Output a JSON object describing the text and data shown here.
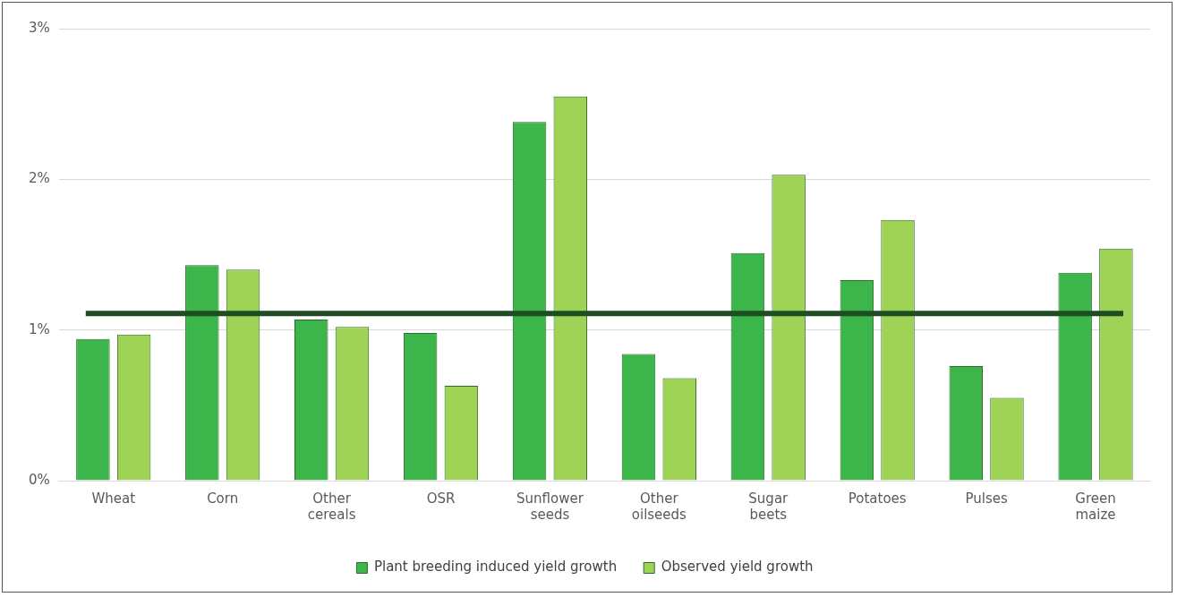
{
  "chart_data": {
    "type": "bar",
    "categories": [
      "Wheat",
      "Corn",
      "Other cereals",
      "OSR",
      "Sunflower seeds",
      "Other oilseeds",
      "Sugar beets",
      "Potatoes",
      "Pulses",
      "Green maize"
    ],
    "series": [
      {
        "name": "Plant breeding induced yield growth",
        "color": "#3cb54a",
        "values": [
          0.94,
          1.43,
          1.07,
          0.98,
          2.38,
          0.84,
          1.51,
          1.33,
          0.76,
          1.38
        ]
      },
      {
        "name": "Observed yield growth",
        "color": "#9fd356",
        "values": [
          0.97,
          1.4,
          1.02,
          0.63,
          2.55,
          0.68,
          2.03,
          1.73,
          0.55,
          1.54
        ]
      }
    ],
    "ylim": [
      0,
      3
    ],
    "yticks": [
      {
        "value": 0,
        "label": "0%"
      },
      {
        "value": 1,
        "label": "1%"
      },
      {
        "value": 2,
        "label": "2%"
      },
      {
        "value": 3,
        "label": "3%"
      }
    ],
    "grid": "y",
    "legend": "bottom",
    "ref_lines": [
      {
        "axis": "y",
        "value": 1.11,
        "color": "#1e4d22"
      }
    ]
  }
}
